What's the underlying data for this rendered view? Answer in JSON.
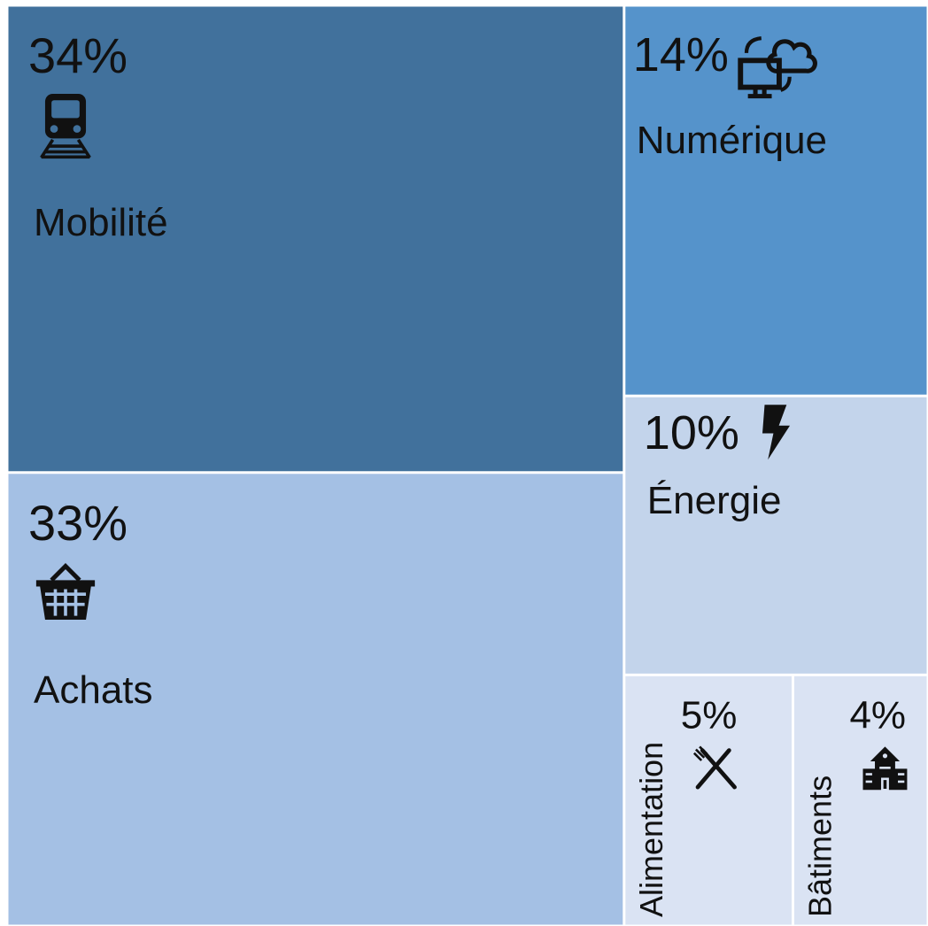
{
  "chart_data": {
    "type": "treemap",
    "categories": [
      "Mobilité",
      "Achats",
      "Numérique",
      "Énergie",
      "Alimentation",
      "Bâtiments"
    ],
    "values": [
      34,
      33,
      14,
      10,
      5,
      4
    ],
    "value_labels": [
      "34%",
      "33%",
      "14%",
      "10%",
      "5%",
      "4%"
    ],
    "colors": [
      "#41719c",
      "#a4c0e4",
      "#5593cb",
      "#c3d4eb",
      "#dae3f3",
      "#dae3f3"
    ]
  }
}
